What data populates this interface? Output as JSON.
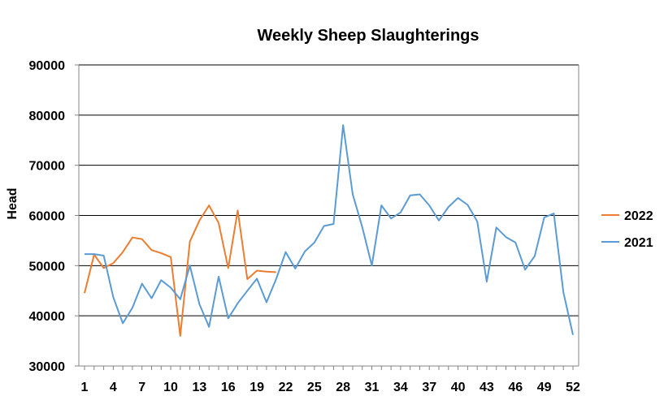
{
  "chart_data": {
    "type": "line",
    "title": "Weekly Sheep Slaughterings",
    "xlabel": "",
    "ylabel": "Head",
    "ylim": [
      30000,
      90000
    ],
    "yticks": [
      30000,
      40000,
      50000,
      60000,
      70000,
      80000,
      90000
    ],
    "xlim": [
      1,
      52
    ],
    "xticks": [
      1,
      4,
      7,
      10,
      13,
      16,
      19,
      22,
      25,
      28,
      31,
      34,
      37,
      40,
      43,
      46,
      49,
      52
    ],
    "grid": "horizontal",
    "legend": "right",
    "series": [
      {
        "name": "2022",
        "color": "#ED7D31",
        "x": [
          1,
          2,
          3,
          4,
          5,
          6,
          7,
          8,
          9,
          10,
          11,
          12,
          13,
          14,
          15,
          16,
          17,
          18,
          19,
          20,
          21
        ],
        "values": [
          44500,
          52200,
          49500,
          50500,
          52700,
          55600,
          55300,
          53100,
          52500,
          51700,
          36000,
          54800,
          59000,
          62000,
          58500,
          49500,
          61000,
          47300,
          49000,
          48800,
          48700
        ]
      },
      {
        "name": "2021",
        "color": "#5B9BD5",
        "x": [
          1,
          2,
          3,
          4,
          5,
          6,
          7,
          8,
          9,
          10,
          11,
          12,
          13,
          14,
          15,
          16,
          17,
          18,
          19,
          20,
          21,
          22,
          23,
          24,
          25,
          26,
          27,
          28,
          29,
          30,
          31,
          32,
          33,
          34,
          35,
          36,
          37,
          38,
          39,
          40,
          41,
          42,
          43,
          44,
          45,
          46,
          47,
          48,
          49,
          50,
          51,
          52
        ],
        "values": [
          52300,
          52300,
          52000,
          43700,
          38500,
          41600,
          46400,
          43500,
          47100,
          45600,
          43300,
          50000,
          42300,
          37800,
          47800,
          39500,
          42500,
          45000,
          47400,
          42700,
          47300,
          52700,
          49400,
          52800,
          54600,
          57900,
          58300,
          78000,
          64200,
          57700,
          50000,
          62000,
          59400,
          60600,
          64000,
          64200,
          62000,
          59000,
          61700,
          63500,
          62100,
          58800,
          46800,
          57600,
          55700,
          54600,
          49200,
          51900,
          59600,
          60400,
          44700,
          36200
        ]
      }
    ]
  }
}
